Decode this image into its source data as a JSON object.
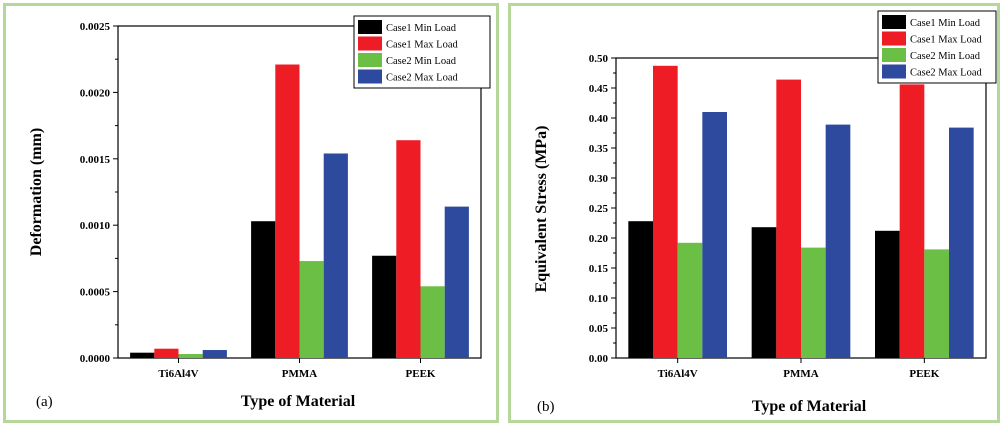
{
  "chart_data": [
    {
      "panel_label": "(a)",
      "type": "bar",
      "categories": [
        "Ti6Al4V",
        "PMMA",
        "PEEK"
      ],
      "series": [
        {
          "name": "Case1 Min Load",
          "color": "#000000",
          "values": [
            4e-05,
            0.00103,
            0.00077
          ]
        },
        {
          "name": "Case1 Max Load",
          "color": "#ee1c24",
          "values": [
            7e-05,
            0.00221,
            0.00164
          ]
        },
        {
          "name": "Case2 Min Load",
          "color": "#6bbf45",
          "values": [
            3e-05,
            0.00073,
            0.00054
          ]
        },
        {
          "name": "Case2 Max Load",
          "color": "#2e4a9e",
          "values": [
            6e-05,
            0.00154,
            0.00114
          ]
        }
      ],
      "ylabel": "Deformation (mm)",
      "xlabel": "Type of Material",
      "ylim": [
        0,
        0.0025
      ],
      "yticks": [
        "0.0000",
        "0.0005",
        "0.0010",
        "0.0015",
        "0.0020",
        "0.0025"
      ],
      "legend_position": "top-right",
      "grid": false
    },
    {
      "panel_label": "(b)",
      "type": "bar",
      "categories": [
        "Ti6Al4V",
        "PMMA",
        "PEEK"
      ],
      "series": [
        {
          "name": "Case1 Min Load",
          "color": "#000000",
          "values": [
            0.228,
            0.218,
            0.212
          ]
        },
        {
          "name": "Case1 Max Load",
          "color": "#ee1c24",
          "values": [
            0.487,
            0.464,
            0.456
          ]
        },
        {
          "name": "Case2 Min Load",
          "color": "#6bbf45",
          "values": [
            0.192,
            0.184,
            0.181
          ]
        },
        {
          "name": "Case2 Max Load",
          "color": "#2e4a9e",
          "values": [
            0.41,
            0.389,
            0.384
          ]
        }
      ],
      "ylabel": "Equivalent Stress (MPa)",
      "xlabel": "Type of Material",
      "ylim": [
        0,
        0.5
      ],
      "yticks": [
        "0.00",
        "0.05",
        "0.10",
        "0.15",
        "0.20",
        "0.25",
        "0.30",
        "0.35",
        "0.40",
        "0.45",
        "0.50"
      ],
      "legend_position": "top-right",
      "grid": false
    }
  ]
}
